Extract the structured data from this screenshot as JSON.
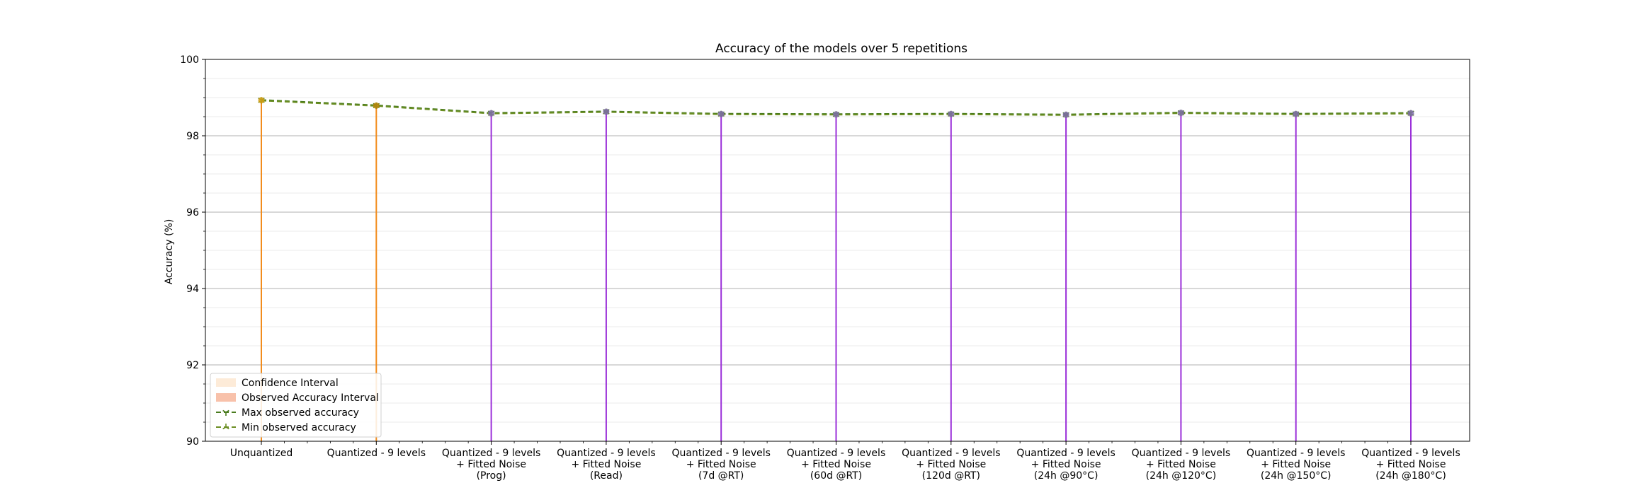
{
  "chart_data": {
    "type": "line",
    "title": "Accuracy of the models over 5 repetitions",
    "xlabel": "",
    "ylabel": "Accuracy (%)",
    "ylim": [
      90,
      100
    ],
    "yticks": [
      "90",
      "92",
      "94",
      "96",
      "98",
      "100"
    ],
    "grid": "horizontal major and minor",
    "legend_position": "lower-left",
    "categories": [
      "Unquantized",
      "Quantized - 9 levels",
      "Quantized - 9 levels\n+ Fitted Noise\n(Prog)",
      "Quantized - 9 levels\n+ Fitted Noise\n(Read)",
      "Quantized - 9 levels\n+ Fitted Noise\n(7d @RT)",
      "Quantized - 9 levels\n+ Fitted Noise\n(60d @RT)",
      "Quantized - 9 levels\n+ Fitted Noise\n(120d @RT)",
      "Quantized - 9 levels\n+ Fitted Noise\n(24h @90°C)",
      "Quantized - 9 levels\n+ Fitted Noise\n(24h @120°C)",
      "Quantized - 9 levels\n+ Fitted Noise\n(24h @150°C)",
      "Quantized - 9 levels\n+ Fitted Noise\n(24h @180°C)"
    ],
    "series": [
      {
        "name": "Max observed accuracy",
        "color": "#4a7c1f",
        "marker": "tri_down",
        "linestyle": "dashed",
        "values": [
          98.94,
          98.8,
          98.6,
          98.64,
          98.58,
          98.57,
          98.58,
          98.56,
          98.61,
          98.58,
          98.6
        ]
      },
      {
        "name": "Min observed accuracy",
        "color": "#6b8e23",
        "marker": "tri_up",
        "linestyle": "dashed",
        "values": [
          98.92,
          98.78,
          98.58,
          98.62,
          98.56,
          98.55,
          98.56,
          98.54,
          98.59,
          98.56,
          98.58
        ]
      }
    ],
    "mean_markers": {
      "colors": [
        "#d4a017",
        "#b8860b",
        "#7e6da8",
        "#7e6da8",
        "#7e6da8",
        "#7e6da8",
        "#7e6da8",
        "#7e6da8",
        "#7e6da8",
        "#7e6da8",
        "#7e6da8"
      ],
      "values": [
        98.93,
        98.79,
        98.59,
        98.63,
        98.57,
        98.56,
        98.57,
        98.55,
        98.6,
        98.57,
        98.59
      ]
    },
    "stems": {
      "colors": [
        "#f28c1c",
        "#f28c1c",
        "#9b30d9",
        "#9b30d9",
        "#9b30d9",
        "#9b30d9",
        "#9b30d9",
        "#9b30d9",
        "#9b30d9",
        "#9b30d9",
        "#9b30d9"
      ]
    },
    "legend": [
      {
        "label": "Confidence Interval",
        "kind": "patch",
        "color": "#fdebd8"
      },
      {
        "label": "Observed Accuracy Interval",
        "kind": "patch",
        "color": "#f8c1aa"
      },
      {
        "label": "Max observed accuracy",
        "kind": "line",
        "color": "#4a7c1f",
        "marker": "tri_down"
      },
      {
        "label": "Min observed accuracy",
        "kind": "line",
        "color": "#6b8e23",
        "marker": "tri_up"
      }
    ]
  }
}
